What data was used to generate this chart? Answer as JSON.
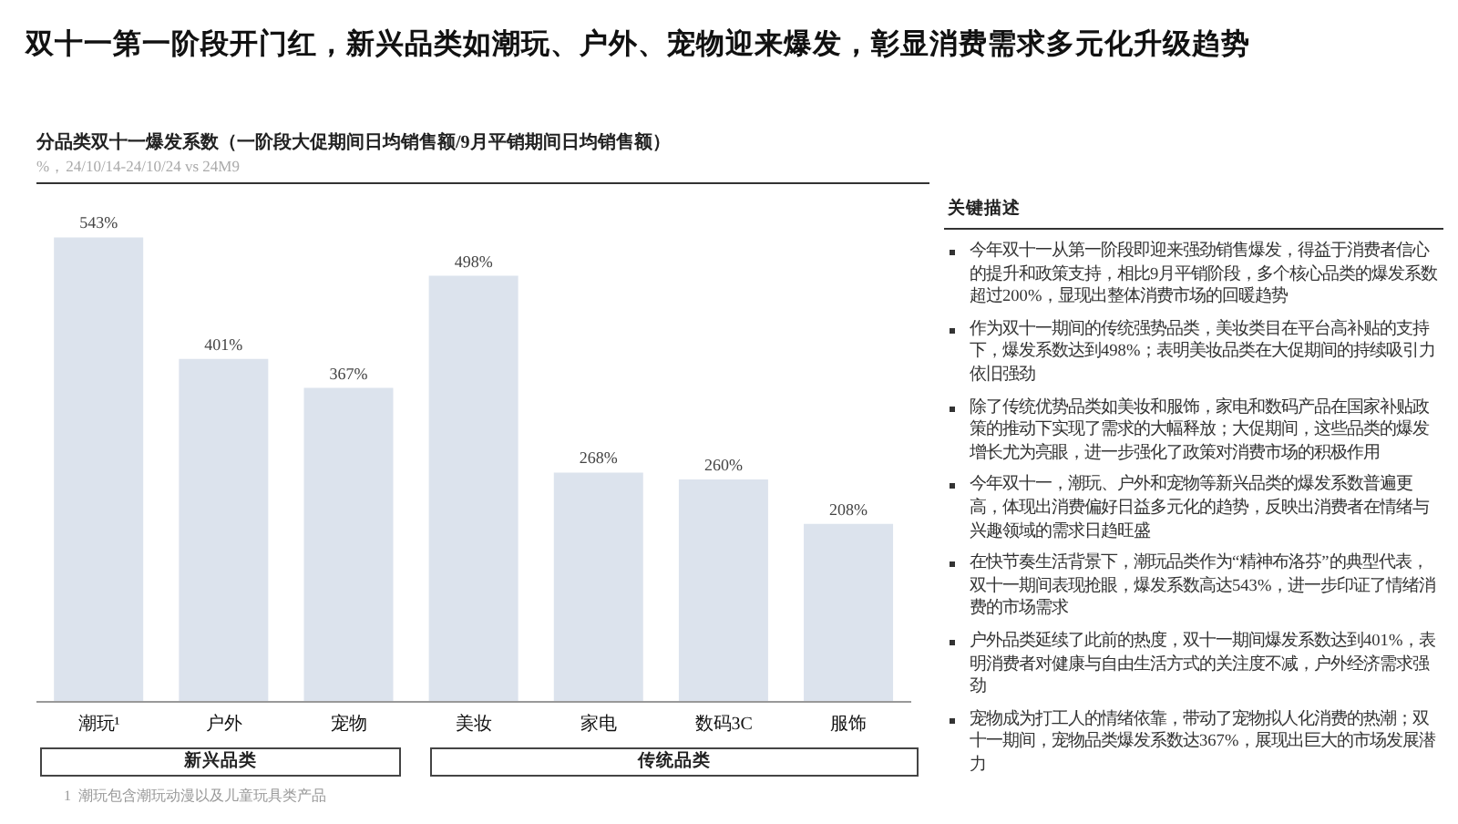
{
  "chart_data": [
    {
      "type": "bar",
      "title": "双十一第一阶段开门红，新兴品类如潮玩、户外、宠物迎来爆发，彰显消费需求多元化升级趋势",
      "subtitle": "分品类双十一爆发系数（一阶段大促期间日均销售额/9月平销期间日均销售额）",
      "categories": [
        "潮玩¹",
        "户外",
        "宠物",
        "美妆",
        "家电",
        "数码3C",
        "服饰"
      ],
      "values": [
        543,
        401,
        367,
        498,
        268,
        260,
        208
      ],
      "value_labels": [
        "543%",
        "401%",
        "367%",
        "498%",
        "268%",
        "260%",
        "208%"
      ],
      "color": "#dce3ed",
      "grid": false,
      "legend": false,
      "annotations": [
        "%，24/10/14-24/10/24 vs 24M9",
        "新兴品类",
        "传统品类",
        "1  潮玩包含潮玩动漫以及儿童玩具类产品"
      ]
    },
    {
      "type": "other",
      "title": "关键描述",
      "annotations": [
        "今年双十一从第一阶段即迎来强劲销售爆发，得益于消费者信心的提升和政策支持，相比9月平销阶段，多个核心品类的爆发系数超过200%，显现出整体消费市场的回暖趋势",
        "作为双十一期间的传统强势品类，美妆类目在平台高补贴的支持下，爆发系数达到498%；表明美妆品类在大促期间的持续吸引力依旧强劲",
        "除了传统优势品类如美妆和服饰，家电和数码产品在国家补贴政策的推动下实现了需求的大幅释放；大促期间，这些品类的爆发增长尤为亮眼，进一步强化了政策对消费市场的积极作用",
        "今年双十一，潮玩、户外和宠物等新兴品类的爆发系数普遍更高，体现出消费偏好日益多元化的趋势，反映出消费者在情绪与兴趣领域的需求日趋旺盛",
        "在快节奏生活背景下，潮玩品类作为“精神布洛芬”的典型代表，双十一期间表现抢眼，爆发系数高达543%，进一步印证了情绪消费的市场需求",
        "户外品类延续了此前的热度，双十一期间爆发系数达到401%，表明消费者对健康与自由生活方式的关注度不减，户外经济需求强劲",
        "宠物成为打工人的情绪依靠，带动了宠物拟人化消费的热潮；双十一期间，宠物品类爆发系数达367%，展现出巨大的市场发展潜力"
      ]
    }
  ]
}
